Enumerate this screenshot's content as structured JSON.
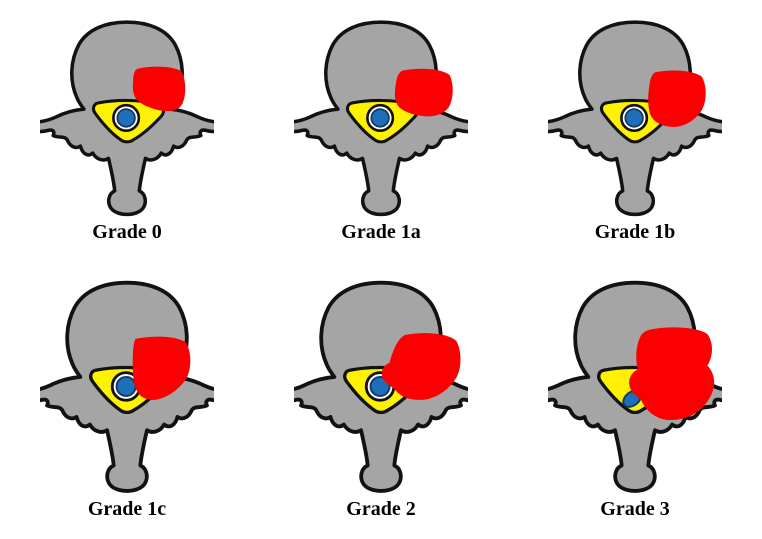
{
  "figure": {
    "grid": {
      "columns": 3,
      "rows": 2
    }
  },
  "colors": {
    "background": "#FFFFFF",
    "bone_gray": "#A5A5A5",
    "outline_black": "#121212",
    "thecal_sac_yellow": "#FFF200",
    "csf_white": "#FFFFFF",
    "cord_blue": "#1C6FB8",
    "cord_rim_navy": "#16395C",
    "tumor_red": "#FB0000",
    "label_black": "#000000"
  },
  "panels": [
    {
      "id": "grade-0",
      "label": "Grade 0",
      "csf_ring_visible": true,
      "cord_compressed": false
    },
    {
      "id": "grade-1a",
      "label": "Grade 1a",
      "csf_ring_visible": true,
      "cord_compressed": false
    },
    {
      "id": "grade-1b",
      "label": "Grade 1b",
      "csf_ring_visible": true,
      "cord_compressed": false
    },
    {
      "id": "grade-1c",
      "label": "Grade 1c",
      "csf_ring_visible": true,
      "cord_compressed": false
    },
    {
      "id": "grade-2",
      "label": "Grade 2",
      "csf_ring_visible": true,
      "cord_compressed": false
    },
    {
      "id": "grade-3",
      "label": "Grade 3",
      "csf_ring_visible": false,
      "cord_compressed": true
    }
  ]
}
